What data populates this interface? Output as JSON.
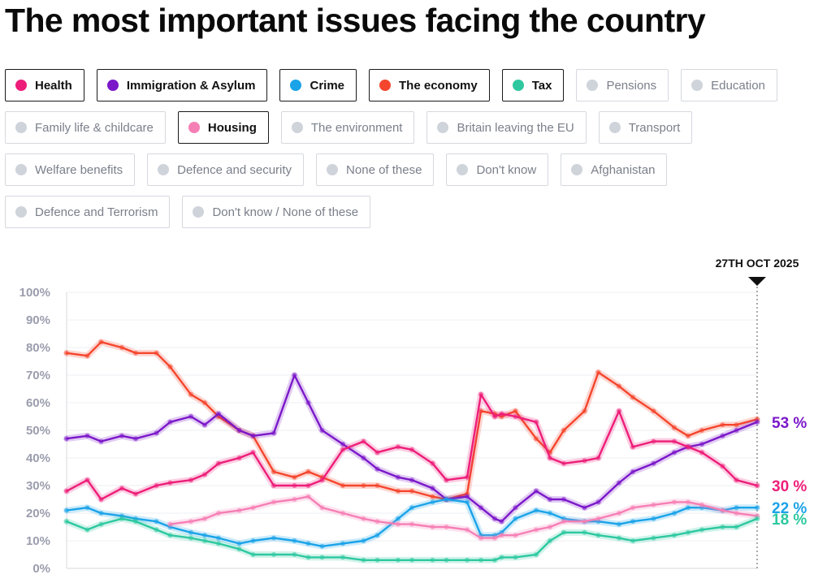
{
  "title": "The most important issues facing the country",
  "filters": [
    {
      "label": "Health",
      "active": true,
      "color": "#ed1e79"
    },
    {
      "label": "Immigration & Asylum",
      "active": true,
      "color": "#7b18c9"
    },
    {
      "label": "Crime",
      "active": true,
      "color": "#1aa3e8"
    },
    {
      "label": "The economy",
      "active": true,
      "color": "#f4462d"
    },
    {
      "label": "Tax",
      "active": true,
      "color": "#2ec8a0"
    },
    {
      "label": "Pensions",
      "active": false,
      "color": "#cfd3da"
    },
    {
      "label": "Education",
      "active": false,
      "color": "#cfd3da"
    },
    {
      "label": "Family life & childcare",
      "active": false,
      "color": "#cfd3da"
    },
    {
      "label": "Housing",
      "active": true,
      "color": "#f57fb5"
    },
    {
      "label": "The environment",
      "active": false,
      "color": "#cfd3da"
    },
    {
      "label": "Britain leaving the EU",
      "active": false,
      "color": "#cfd3da"
    },
    {
      "label": "Transport",
      "active": false,
      "color": "#cfd3da"
    },
    {
      "label": "Welfare benefits",
      "active": false,
      "color": "#cfd3da"
    },
    {
      "label": "Defence and security",
      "active": false,
      "color": "#cfd3da"
    },
    {
      "label": "None of these",
      "active": false,
      "color": "#cfd3da"
    },
    {
      "label": "Don't know",
      "active": false,
      "color": "#cfd3da"
    },
    {
      "label": "Afghanistan",
      "active": false,
      "color": "#cfd3da"
    },
    {
      "label": "Defence and Terrorism",
      "active": false,
      "color": "#cfd3da"
    },
    {
      "label": "Don't know / None of these",
      "active": false,
      "color": "#cfd3da"
    }
  ],
  "chart_data": {
    "type": "line",
    "title": "The most important issues facing the country",
    "y_unit": "%",
    "ylim": [
      0,
      100
    ],
    "yticks": [
      0,
      10,
      20,
      30,
      40,
      50,
      60,
      70,
      80,
      90,
      100
    ],
    "ytick_labels": [
      "0%",
      "10%",
      "20%",
      "30%",
      "40%",
      "50%",
      "60%",
      "70%",
      "80%",
      "90%",
      "100%"
    ],
    "x_normalized": [
      0,
      0.03,
      0.05,
      0.08,
      0.1,
      0.13,
      0.15,
      0.18,
      0.2,
      0.22,
      0.25,
      0.27,
      0.3,
      0.33,
      0.35,
      0.37,
      0.4,
      0.43,
      0.45,
      0.48,
      0.5,
      0.53,
      0.55,
      0.58,
      0.6,
      0.62,
      0.63,
      0.65,
      0.68,
      0.7,
      0.72,
      0.75,
      0.77,
      0.8,
      0.82,
      0.85,
      0.88,
      0.9,
      0.92,
      0.95,
      0.97,
      1
    ],
    "current_date_label": "27TH OCT 2025",
    "series": [
      {
        "name": "The economy",
        "color": "#f4462d",
        "values": [
          78,
          77,
          82,
          80,
          78,
          78,
          73,
          63,
          60,
          55,
          50,
          48,
          35,
          33,
          35,
          33,
          30,
          30,
          30,
          28,
          28,
          26,
          25,
          27,
          57,
          56,
          55,
          57,
          47,
          42,
          50,
          57,
          71,
          66,
          62,
          57,
          51,
          48,
          50,
          52,
          52,
          54
        ],
        "end_label": null
      },
      {
        "name": "Immigration & Asylum",
        "color": "#7b18c9",
        "values": [
          47,
          48,
          46,
          48,
          47,
          49,
          53,
          55,
          52,
          56,
          50,
          48,
          49,
          70,
          60,
          50,
          45,
          40,
          36,
          33,
          32,
          29,
          25,
          26,
          22,
          18,
          17,
          22,
          28,
          25,
          25,
          22,
          24,
          31,
          35,
          38,
          42,
          44,
          45,
          48,
          50,
          53
        ],
        "end_label": "53 %"
      },
      {
        "name": "Health",
        "color": "#ed1e79",
        "values": [
          28,
          32,
          25,
          29,
          27,
          30,
          31,
          32,
          34,
          38,
          40,
          42,
          30,
          30,
          30,
          32,
          43,
          46,
          42,
          44,
          43,
          38,
          32,
          33,
          63,
          55,
          56,
          55,
          53,
          40,
          38,
          39,
          40,
          57,
          44,
          46,
          46,
          44,
          42,
          37,
          32,
          30
        ],
        "end_label": "30 %"
      },
      {
        "name": "Crime",
        "color": "#1aa3e8",
        "values": [
          21,
          22,
          20,
          19,
          18,
          17,
          15,
          13,
          12,
          11,
          9,
          10,
          11,
          10,
          9,
          8,
          9,
          10,
          12,
          18,
          22,
          24,
          25,
          24,
          12,
          12,
          13,
          18,
          21,
          20,
          18,
          17,
          17,
          16,
          17,
          18,
          20,
          22,
          22,
          21,
          22,
          22
        ],
        "end_label": "22 %"
      },
      {
        "name": "Housing",
        "color": "#f57fb5",
        "values": [
          null,
          null,
          null,
          null,
          null,
          null,
          16,
          17,
          18,
          20,
          21,
          22,
          24,
          25,
          26,
          22,
          20,
          18,
          17,
          16,
          16,
          15,
          15,
          14,
          11,
          11,
          12,
          12,
          14,
          15,
          17,
          17,
          18,
          20,
          22,
          23,
          24,
          24,
          23,
          21,
          20,
          19
        ],
        "end_label": null
      },
      {
        "name": "Tax",
        "color": "#2ec8a0",
        "values": [
          17,
          14,
          16,
          18,
          17,
          14,
          12,
          11,
          10,
          9,
          7,
          5,
          5,
          5,
          4,
          4,
          4,
          3,
          3,
          3,
          3,
          3,
          3,
          3,
          3,
          3,
          4,
          4,
          5,
          10,
          13,
          13,
          12,
          11,
          10,
          11,
          12,
          13,
          14,
          15,
          15,
          18
        ],
        "end_label": "18 %"
      }
    ]
  }
}
